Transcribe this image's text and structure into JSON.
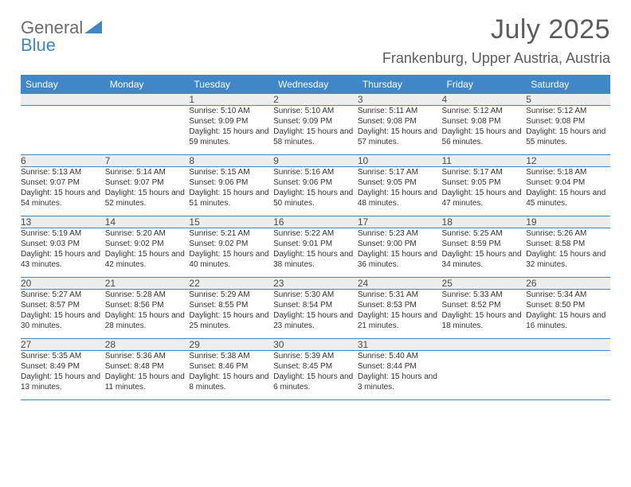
{
  "logo": {
    "line1": "General",
    "line2": "Blue"
  },
  "title": "July 2025",
  "location": "Frankenburg, Upper Austria, Austria",
  "colors": {
    "header_bg": "#3f87c7",
    "header_text": "#ffffff",
    "daynum_bg": "#ededed",
    "text": "#333333",
    "rule": "#3f87c7",
    "logo_gray": "#6b6b6b",
    "logo_blue": "#3f87c7"
  },
  "weekdays": [
    "Sunday",
    "Monday",
    "Tuesday",
    "Wednesday",
    "Thursday",
    "Friday",
    "Saturday"
  ],
  "layout": {
    "first_weekday_index": 2,
    "days_in_month": 31
  },
  "days": {
    "1": {
      "sunrise": "5:10 AM",
      "sunset": "9:09 PM",
      "daylight": "15 hours and 59 minutes."
    },
    "2": {
      "sunrise": "5:10 AM",
      "sunset": "9:09 PM",
      "daylight": "15 hours and 58 minutes."
    },
    "3": {
      "sunrise": "5:11 AM",
      "sunset": "9:08 PM",
      "daylight": "15 hours and 57 minutes."
    },
    "4": {
      "sunrise": "5:12 AM",
      "sunset": "9:08 PM",
      "daylight": "15 hours and 56 minutes."
    },
    "5": {
      "sunrise": "5:12 AM",
      "sunset": "9:08 PM",
      "daylight": "15 hours and 55 minutes."
    },
    "6": {
      "sunrise": "5:13 AM",
      "sunset": "9:07 PM",
      "daylight": "15 hours and 54 minutes."
    },
    "7": {
      "sunrise": "5:14 AM",
      "sunset": "9:07 PM",
      "daylight": "15 hours and 52 minutes."
    },
    "8": {
      "sunrise": "5:15 AM",
      "sunset": "9:06 PM",
      "daylight": "15 hours and 51 minutes."
    },
    "9": {
      "sunrise": "5:16 AM",
      "sunset": "9:06 PM",
      "daylight": "15 hours and 50 minutes."
    },
    "10": {
      "sunrise": "5:17 AM",
      "sunset": "9:05 PM",
      "daylight": "15 hours and 48 minutes."
    },
    "11": {
      "sunrise": "5:17 AM",
      "sunset": "9:05 PM",
      "daylight": "15 hours and 47 minutes."
    },
    "12": {
      "sunrise": "5:18 AM",
      "sunset": "9:04 PM",
      "daylight": "15 hours and 45 minutes."
    },
    "13": {
      "sunrise": "5:19 AM",
      "sunset": "9:03 PM",
      "daylight": "15 hours and 43 minutes."
    },
    "14": {
      "sunrise": "5:20 AM",
      "sunset": "9:02 PM",
      "daylight": "15 hours and 42 minutes."
    },
    "15": {
      "sunrise": "5:21 AM",
      "sunset": "9:02 PM",
      "daylight": "15 hours and 40 minutes."
    },
    "16": {
      "sunrise": "5:22 AM",
      "sunset": "9:01 PM",
      "daylight": "15 hours and 38 minutes."
    },
    "17": {
      "sunrise": "5:23 AM",
      "sunset": "9:00 PM",
      "daylight": "15 hours and 36 minutes."
    },
    "18": {
      "sunrise": "5:25 AM",
      "sunset": "8:59 PM",
      "daylight": "15 hours and 34 minutes."
    },
    "19": {
      "sunrise": "5:26 AM",
      "sunset": "8:58 PM",
      "daylight": "15 hours and 32 minutes."
    },
    "20": {
      "sunrise": "5:27 AM",
      "sunset": "8:57 PM",
      "daylight": "15 hours and 30 minutes."
    },
    "21": {
      "sunrise": "5:28 AM",
      "sunset": "8:56 PM",
      "daylight": "15 hours and 28 minutes."
    },
    "22": {
      "sunrise": "5:29 AM",
      "sunset": "8:55 PM",
      "daylight": "15 hours and 25 minutes."
    },
    "23": {
      "sunrise": "5:30 AM",
      "sunset": "8:54 PM",
      "daylight": "15 hours and 23 minutes."
    },
    "24": {
      "sunrise": "5:31 AM",
      "sunset": "8:53 PM",
      "daylight": "15 hours and 21 minutes."
    },
    "25": {
      "sunrise": "5:33 AM",
      "sunset": "8:52 PM",
      "daylight": "15 hours and 18 minutes."
    },
    "26": {
      "sunrise": "5:34 AM",
      "sunset": "8:50 PM",
      "daylight": "15 hours and 16 minutes."
    },
    "27": {
      "sunrise": "5:35 AM",
      "sunset": "8:49 PM",
      "daylight": "15 hours and 13 minutes."
    },
    "28": {
      "sunrise": "5:36 AM",
      "sunset": "8:48 PM",
      "daylight": "15 hours and 11 minutes."
    },
    "29": {
      "sunrise": "5:38 AM",
      "sunset": "8:46 PM",
      "daylight": "15 hours and 8 minutes."
    },
    "30": {
      "sunrise": "5:39 AM",
      "sunset": "8:45 PM",
      "daylight": "15 hours and 6 minutes."
    },
    "31": {
      "sunrise": "5:40 AM",
      "sunset": "8:44 PM",
      "daylight": "15 hours and 3 minutes."
    }
  },
  "labels": {
    "sunrise": "Sunrise:",
    "sunset": "Sunset:",
    "daylight": "Daylight:"
  }
}
